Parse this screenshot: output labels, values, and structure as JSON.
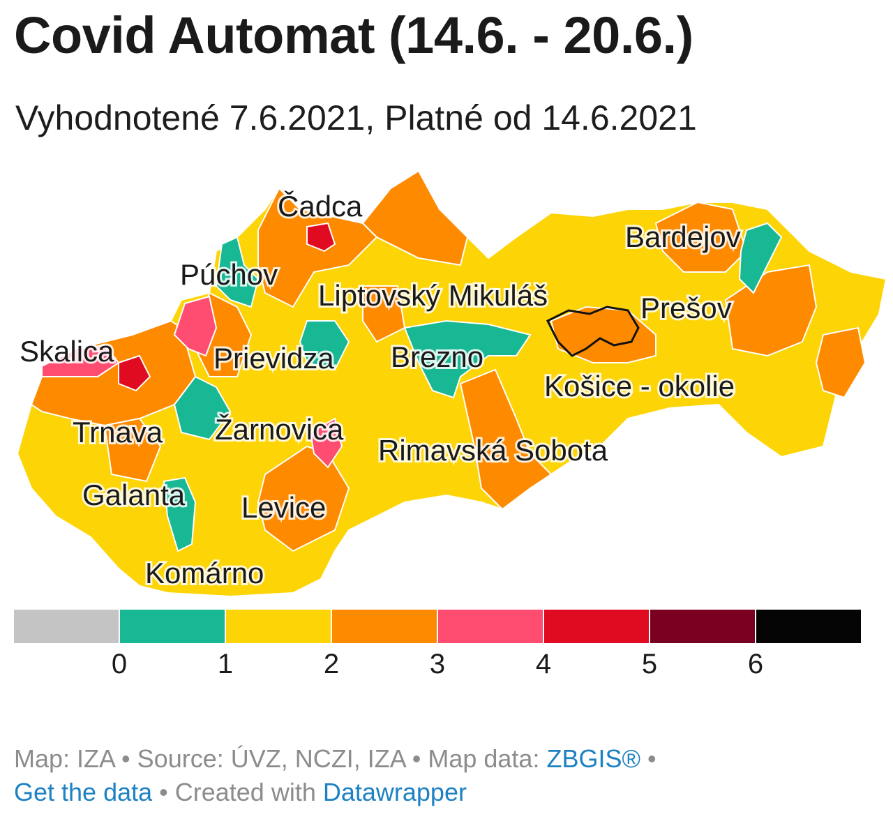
{
  "title": "Covid Automat (14.6. - 20.6.)",
  "subtitle": "Vyhodnotené 7.6.2021, Platné od 14.6.2021",
  "colors": {
    "0": "#c4c4c4",
    "1": "#19b894",
    "2": "#fdd405",
    "3": "#fe8a00",
    "4": "#fe4d70",
    "5": "#e00b20",
    "6": "#7a0022",
    "7": "#050505",
    "highlight_outline": "#111111"
  },
  "legend": {
    "boxes": [
      "#c4c4c4",
      "#19b894",
      "#fdd405",
      "#fe8a00",
      "#fe4d70",
      "#e00b20",
      "#7a0022",
      "#050505"
    ],
    "ticks": [
      "0",
      "1",
      "2",
      "3",
      "4",
      "5",
      "6"
    ]
  },
  "labels": [
    {
      "id": "cadca",
      "text": "Čadca"
    },
    {
      "id": "puchov",
      "text": "Púchov"
    },
    {
      "id": "liptovsky-mikulas",
      "text": "Liptovský Mikuláš"
    },
    {
      "id": "bardejov",
      "text": "Bardejov"
    },
    {
      "id": "presov",
      "text": "Prešov"
    },
    {
      "id": "skalica",
      "text": "Skalica"
    },
    {
      "id": "prievidza",
      "text": "Prievidza"
    },
    {
      "id": "brezno",
      "text": "Brezno"
    },
    {
      "id": "kosice-okolie",
      "text": "Košice - okolie"
    },
    {
      "id": "trnava",
      "text": "Trnava"
    },
    {
      "id": "zarnovica",
      "text": "Žarnovica"
    },
    {
      "id": "rimavska-sobota",
      "text": "Rimavská Sobota"
    },
    {
      "id": "galanta",
      "text": "Galanta"
    },
    {
      "id": "levice",
      "text": "Levice"
    },
    {
      "id": "komarno",
      "text": "Komárno"
    }
  ],
  "footer": {
    "prefix": "Map: IZA • Source: ÚVZ, NCZI, IZA • Map data: ",
    "zbgis": "ZBGIS®",
    "sep1": " • ",
    "get_data": "Get the data",
    "sep2": " • Created with ",
    "datawrapper": "Datawrapper"
  }
}
